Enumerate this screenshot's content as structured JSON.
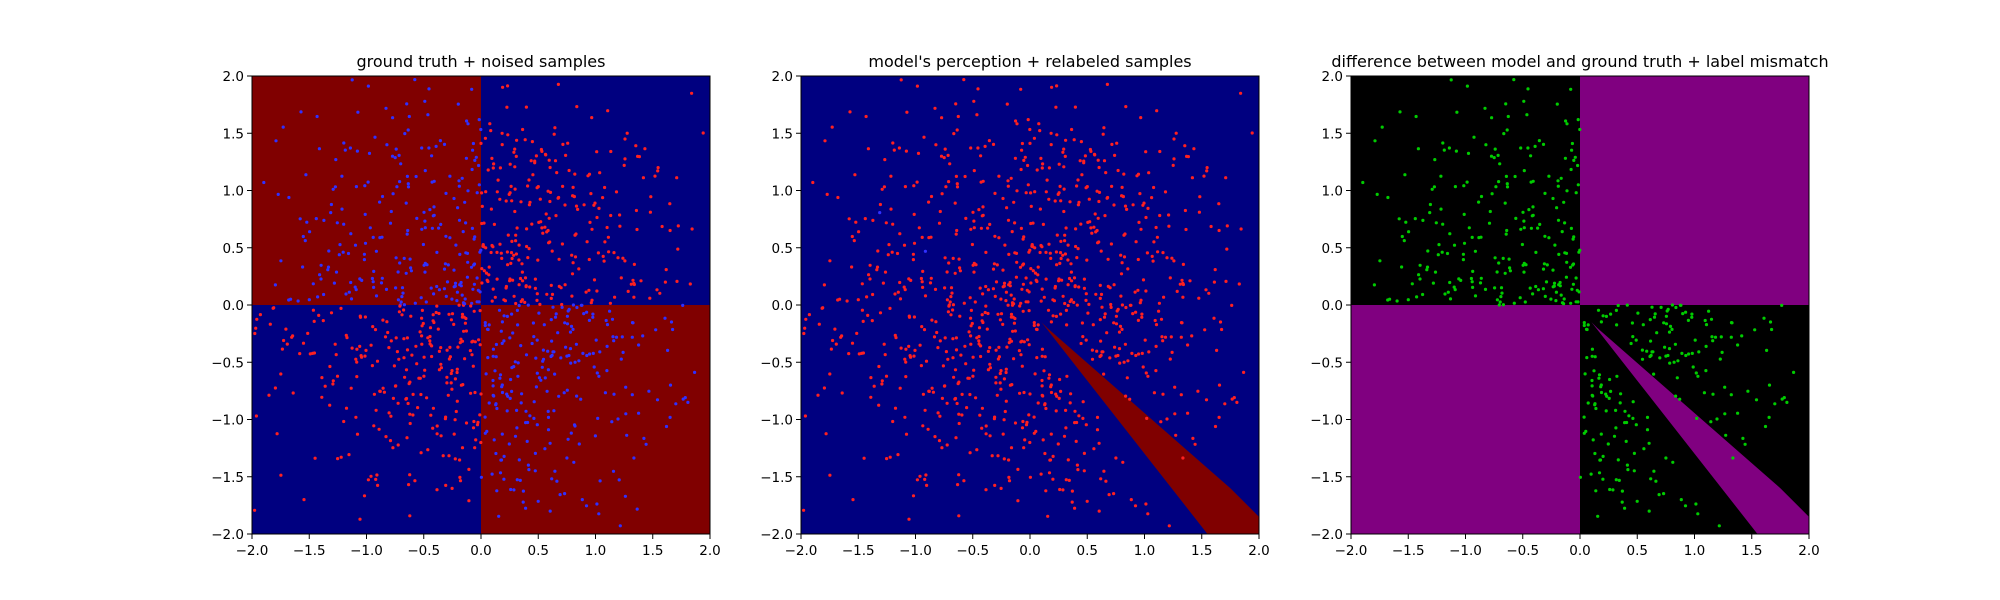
{
  "chart_data": [
    {
      "type": "scatter",
      "title": "ground truth + noised samples",
      "xlim": [
        -2.0,
        2.0
      ],
      "ylim": [
        -2.0,
        2.0
      ],
      "xticks": [
        "−2.0",
        "−1.5",
        "−1.0",
        "−0.5",
        "0.0",
        "0.5",
        "1.0",
        "1.5",
        "2.0"
      ],
      "yticks": [
        "−2.0",
        "−1.5",
        "−1.0",
        "−0.5",
        "0.0",
        "0.5",
        "1.0",
        "1.5",
        "2.0"
      ],
      "tick_values": [
        -2.0,
        -1.5,
        -1.0,
        -0.5,
        0.0,
        0.5,
        1.0,
        1.5,
        2.0
      ],
      "grid": false,
      "background": {
        "kind": "quadrant-checker",
        "color_a": "#800000",
        "color_b": "#000080",
        "description": "x*y<0 -> color_a (dark red), x*y>0 -> color_b (navy)"
      },
      "series": [
        {
          "color": "#ff2020",
          "rule": "in navy quadrants (x*y>0)",
          "approx_count": 500
        },
        {
          "color": "#3030ff",
          "rule": "in dark-red quadrants (x*y<0)",
          "approx_count": 500
        }
      ]
    },
    {
      "type": "scatter",
      "title": "model's perception + relabeled samples",
      "xlim": [
        -2.0,
        2.0
      ],
      "ylim": [
        -2.0,
        2.0
      ],
      "xticks": [
        "−2.0",
        "−1.5",
        "−1.0",
        "−0.5",
        "0.0",
        "0.5",
        "1.0",
        "1.5",
        "2.0"
      ],
      "yticks": [
        "−2.0",
        "−1.5",
        "−1.0",
        "−0.5",
        "0.0",
        "0.5",
        "1.0",
        "1.5",
        "2.0"
      ],
      "tick_values": [
        -2.0,
        -1.5,
        -1.0,
        -0.5,
        0.0,
        0.5,
        1.0,
        1.5,
        2.0
      ],
      "grid": false,
      "background": {
        "kind": "uniform-with-wedge",
        "color_main": "#000080",
        "color_wedge": "#800000",
        "wedge_polygon": [
          [
            0.1,
            -0.15
          ],
          [
            1.55,
            -2.0
          ],
          [
            2.0,
            -2.0
          ],
          [
            2.0,
            -1.85
          ],
          [
            1.75,
            -1.6
          ],
          [
            0.15,
            -0.2
          ]
        ]
      },
      "series": [
        {
          "color": "#ff2020",
          "rule": "nearly all samples",
          "approx_count": 1000
        },
        {
          "color": "#3030ff",
          "rule": "sparse, upper-left area",
          "approx_count": 15
        }
      ]
    },
    {
      "type": "scatter",
      "title": "difference between model and ground truth + label mismatch",
      "xlim": [
        -2.0,
        2.0
      ],
      "ylim": [
        -2.0,
        2.0
      ],
      "xticks": [
        "−2.0",
        "−1.5",
        "−1.0",
        "−0.5",
        "0.0",
        "0.5",
        "1.0",
        "1.5",
        "2.0"
      ],
      "yticks": [
        "−2.0",
        "−1.5",
        "−1.0",
        "−0.5",
        "0.0",
        "0.5",
        "1.0",
        "1.5",
        "2.0"
      ],
      "tick_values": [
        -2.0,
        -1.5,
        -1.0,
        -0.5,
        0.0,
        0.5,
        1.0,
        1.5,
        2.0
      ],
      "grid": false,
      "background": {
        "kind": "quadrant-diff",
        "color_agree": "#000000",
        "color_differ": "#800080",
        "description": "x*y>0 -> purple, x*y<0 -> black, plus purple wedge in lower-right",
        "wedge_polygon": [
          [
            0.1,
            -0.15
          ],
          [
            1.55,
            -2.0
          ],
          [
            2.0,
            -2.0
          ],
          [
            2.0,
            -1.85
          ],
          [
            1.75,
            -1.6
          ],
          [
            0.15,
            -0.2
          ]
        ]
      },
      "series": [
        {
          "color": "#00cc00",
          "rule": "mismatched labels, in black quadrants (x*y<0)",
          "approx_count": 500
        }
      ]
    }
  ]
}
